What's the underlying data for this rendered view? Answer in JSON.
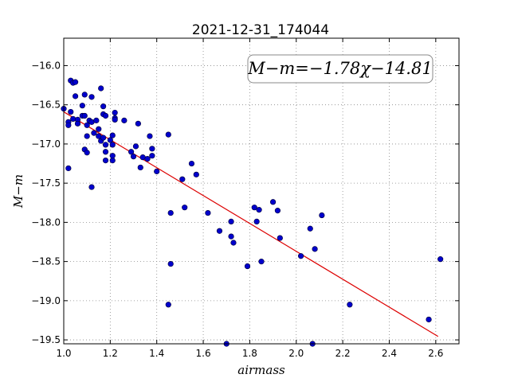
{
  "chart_data": {
    "type": "scatter",
    "title": "2021-12-31_174044",
    "xlabel": "airmass",
    "ylabel": "M−m",
    "annotation": "M−m=−1.78χ−14.81",
    "xlim": [
      1.0,
      2.7
    ],
    "ylim": [
      -19.55,
      -15.65
    ],
    "xticks": [
      1.0,
      1.2,
      1.4,
      1.6,
      1.8,
      2.0,
      2.2,
      2.4,
      2.6
    ],
    "xtick_labels": [
      "1.0",
      "1.2",
      "1.4",
      "1.6",
      "1.8",
      "2.0",
      "2.2",
      "2.4",
      "2.6"
    ],
    "yticks": [
      -16.0,
      -16.5,
      -17.0,
      -17.5,
      -18.0,
      -18.5,
      -19.0,
      -19.5
    ],
    "ytick_labels": [
      "−16.0",
      "−16.5",
      "−17.0",
      "−17.5",
      "−18.0",
      "−18.5",
      "−19.0",
      "−19.5"
    ],
    "grid": true,
    "point_color": "#0000cc",
    "fit_color": "#dd0000",
    "fit": {
      "slope": -1.78,
      "intercept": -14.81,
      "x_range": [
        1.0,
        2.61
      ]
    },
    "points": [
      {
        "x": 1.0,
        "y": -16.55
      },
      {
        "x": 1.02,
        "y": -16.72
      },
      {
        "x": 1.02,
        "y": -16.76
      },
      {
        "x": 1.02,
        "y": -17.31
      },
      {
        "x": 1.03,
        "y": -16.19
      },
      {
        "x": 1.03,
        "y": -16.59
      },
      {
        "x": 1.04,
        "y": -16.22
      },
      {
        "x": 1.04,
        "y": -16.68
      },
      {
        "x": 1.05,
        "y": -16.21
      },
      {
        "x": 1.05,
        "y": -16.39
      },
      {
        "x": 1.06,
        "y": -16.69
      },
      {
        "x": 1.06,
        "y": -16.74
      },
      {
        "x": 1.08,
        "y": -16.51
      },
      {
        "x": 1.08,
        "y": -16.64
      },
      {
        "x": 1.09,
        "y": -16.37
      },
      {
        "x": 1.09,
        "y": -17.07
      },
      {
        "x": 1.09,
        "y": -16.64
      },
      {
        "x": 1.1,
        "y": -16.9
      },
      {
        "x": 1.1,
        "y": -17.11
      },
      {
        "x": 1.1,
        "y": -16.76
      },
      {
        "x": 1.11,
        "y": -16.7
      },
      {
        "x": 1.12,
        "y": -16.4
      },
      {
        "x": 1.12,
        "y": -16.72
      },
      {
        "x": 1.12,
        "y": -17.55
      },
      {
        "x": 1.13,
        "y": -16.86
      },
      {
        "x": 1.14,
        "y": -16.7
      },
      {
        "x": 1.15,
        "y": -16.81
      },
      {
        "x": 1.15,
        "y": -16.9
      },
      {
        "x": 1.16,
        "y": -16.96
      },
      {
        "x": 1.16,
        "y": -16.29
      },
      {
        "x": 1.17,
        "y": -16.52
      },
      {
        "x": 1.17,
        "y": -16.62
      },
      {
        "x": 1.17,
        "y": -16.92
      },
      {
        "x": 1.18,
        "y": -16.64
      },
      {
        "x": 1.18,
        "y": -17.01
      },
      {
        "x": 1.18,
        "y": -17.1
      },
      {
        "x": 1.18,
        "y": -17.21
      },
      {
        "x": 1.2,
        "y": -16.95
      },
      {
        "x": 1.21,
        "y": -16.89
      },
      {
        "x": 1.21,
        "y": -17.01
      },
      {
        "x": 1.21,
        "y": -17.21
      },
      {
        "x": 1.21,
        "y": -17.15
      },
      {
        "x": 1.22,
        "y": -16.6
      },
      {
        "x": 1.22,
        "y": -16.67
      },
      {
        "x": 1.22,
        "y": -16.69
      },
      {
        "x": 1.26,
        "y": -16.7
      },
      {
        "x": 1.29,
        "y": -17.1
      },
      {
        "x": 1.3,
        "y": -17.16
      },
      {
        "x": 1.31,
        "y": -17.03
      },
      {
        "x": 1.32,
        "y": -16.74
      },
      {
        "x": 1.33,
        "y": -17.3
      },
      {
        "x": 1.34,
        "y": -17.17
      },
      {
        "x": 1.36,
        "y": -17.19
      },
      {
        "x": 1.37,
        "y": -16.9
      },
      {
        "x": 1.38,
        "y": -17.06
      },
      {
        "x": 1.38,
        "y": -17.15
      },
      {
        "x": 1.4,
        "y": -17.35
      },
      {
        "x": 1.45,
        "y": -16.88
      },
      {
        "x": 1.45,
        "y": -19.05
      },
      {
        "x": 1.46,
        "y": -17.88
      },
      {
        "x": 1.46,
        "y": -18.53
      },
      {
        "x": 1.51,
        "y": -17.45
      },
      {
        "x": 1.52,
        "y": -17.81
      },
      {
        "x": 1.55,
        "y": -17.25
      },
      {
        "x": 1.57,
        "y": -17.39
      },
      {
        "x": 1.62,
        "y": -17.88
      },
      {
        "x": 1.67,
        "y": -18.11
      },
      {
        "x": 1.7,
        "y": -19.58
      },
      {
        "x": 1.72,
        "y": -17.99
      },
      {
        "x": 1.72,
        "y": -18.18
      },
      {
        "x": 1.73,
        "y": -18.26
      },
      {
        "x": 1.79,
        "y": -18.56
      },
      {
        "x": 1.82,
        "y": -17.81
      },
      {
        "x": 1.83,
        "y": -17.99
      },
      {
        "x": 1.84,
        "y": -17.84
      },
      {
        "x": 1.85,
        "y": -18.5
      },
      {
        "x": 1.9,
        "y": -17.74
      },
      {
        "x": 1.92,
        "y": -17.85
      },
      {
        "x": 1.93,
        "y": -18.2
      },
      {
        "x": 2.02,
        "y": -18.43
      },
      {
        "x": 2.06,
        "y": -18.08
      },
      {
        "x": 2.08,
        "y": -18.34
      },
      {
        "x": 2.11,
        "y": -17.91
      },
      {
        "x": 2.07,
        "y": -19.62
      },
      {
        "x": 2.23,
        "y": -19.05
      },
      {
        "x": 2.57,
        "y": -19.24
      },
      {
        "x": 2.62,
        "y": -18.47
      }
    ]
  }
}
